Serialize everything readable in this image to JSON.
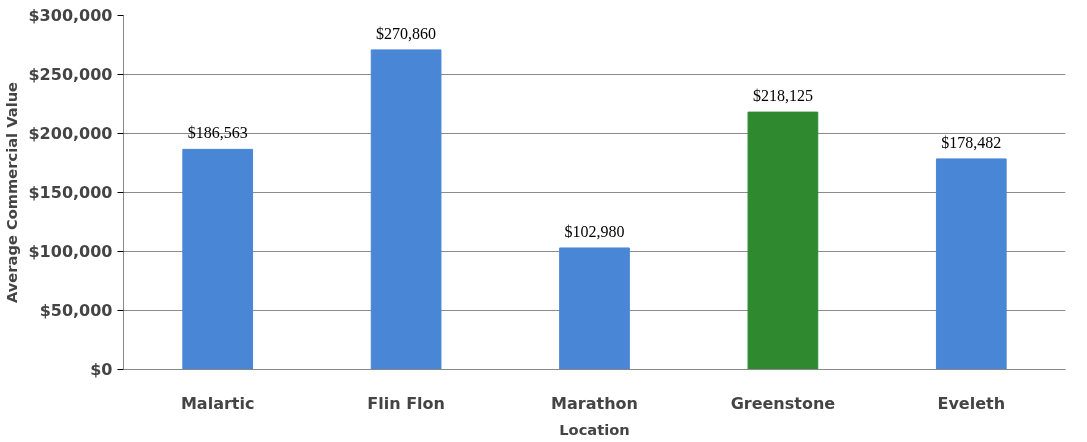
{
  "chart_data": {
    "type": "bar",
    "xlabel": "Location",
    "ylabel": "Average Commercial Value",
    "categories": [
      "Malartic",
      "Flin Flon",
      "Marathon",
      "Greenstone",
      "Eveleth"
    ],
    "values": [
      186563,
      270860,
      102980,
      218125,
      178482
    ],
    "colors": [
      "#4a86d6",
      "#4a86d6",
      "#4a86d6",
      "#2f8a2f",
      "#4a86d6"
    ],
    "value_labels": [
      "$186,563",
      "$270,860",
      "$102,980",
      "$218,125",
      "$178,482"
    ],
    "ylim": [
      0,
      300000
    ],
    "yticks": [
      {
        "value": 0,
        "label": "$0"
      },
      {
        "value": 50000,
        "label": "$50,000"
      },
      {
        "value": 100000,
        "label": "$100,000"
      },
      {
        "value": 150000,
        "label": "$150,000"
      },
      {
        "value": 200000,
        "label": "$200,000"
      },
      {
        "value": 250000,
        "label": "$250,000"
      },
      {
        "value": 300000,
        "label": "$300,000"
      }
    ],
    "grid": "y"
  }
}
